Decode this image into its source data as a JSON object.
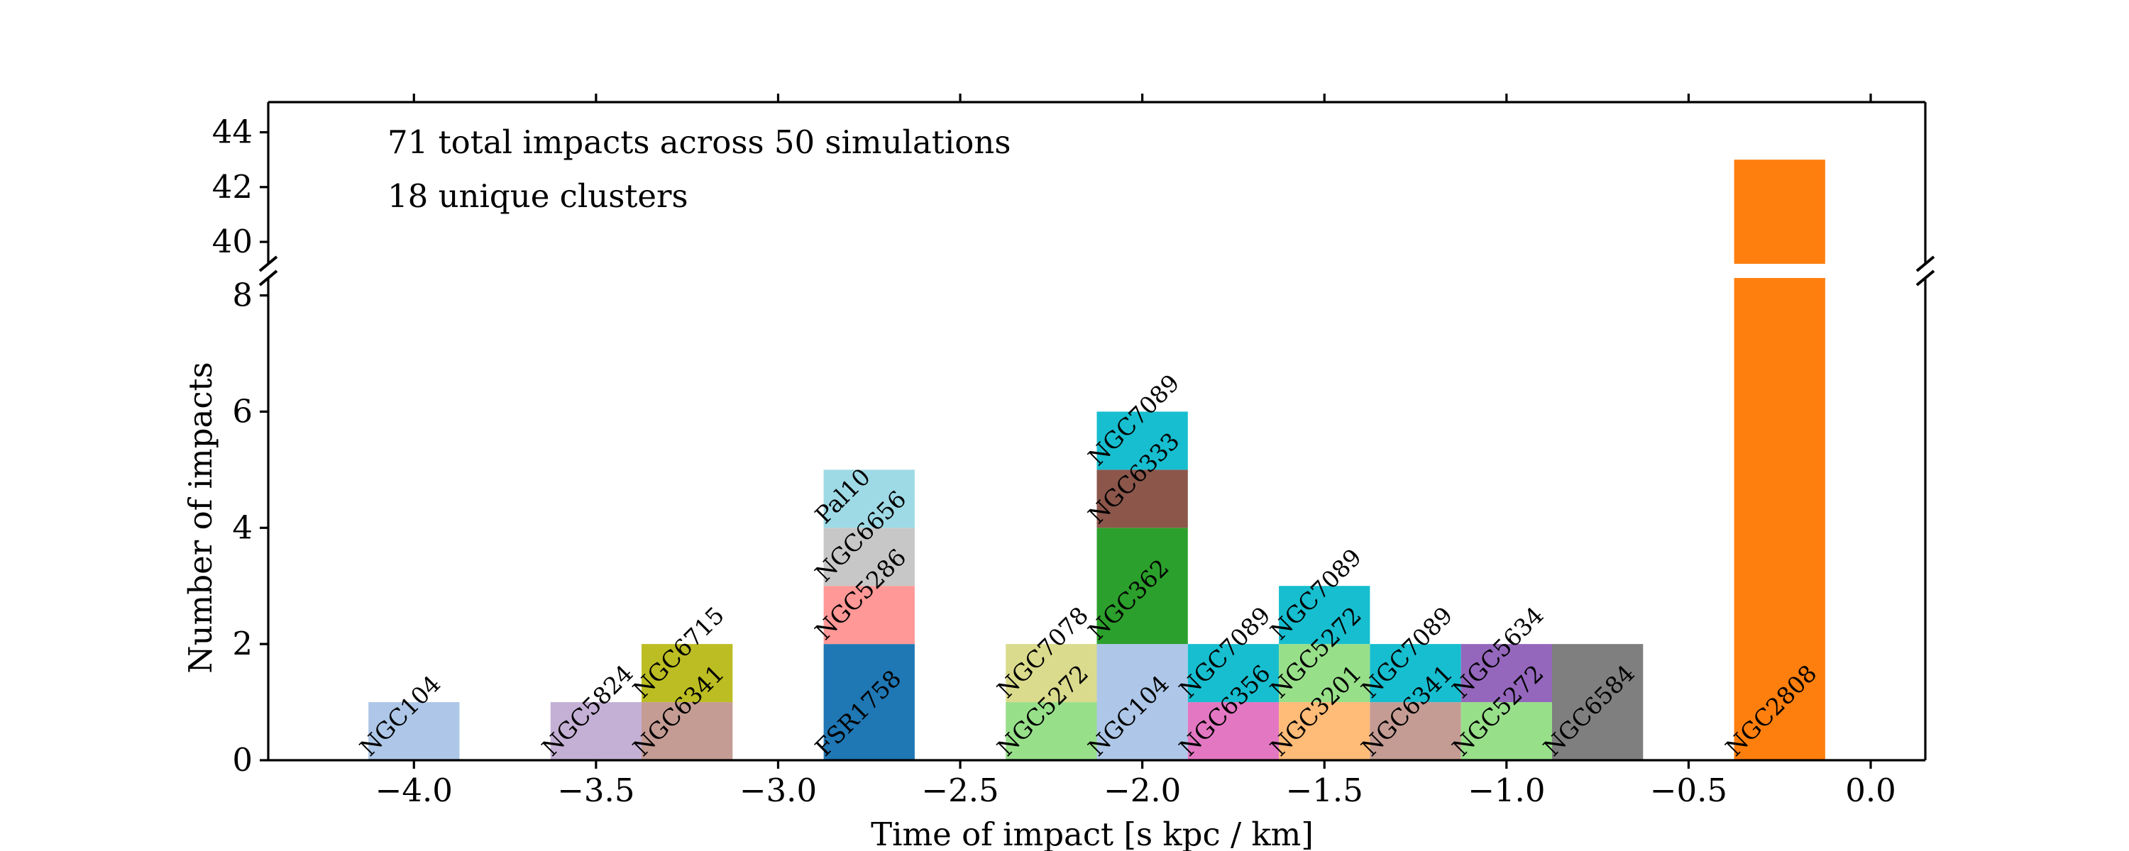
{
  "chart_data": {
    "type": "bar",
    "stacked": true,
    "broken_y_axis": true,
    "xlabel": "Time of impact [s kpc / km]",
    "ylabel": "Number of impacts",
    "xlim": [
      -4.4,
      0.15
    ],
    "ylim_bottom": [
      0,
      8.3
    ],
    "ylim_top": [
      39.2,
      45.1
    ],
    "x_ticks": [
      -4.0,
      -3.5,
      -3.0,
      -2.5,
      -2.0,
      -1.5,
      -1.0,
      -0.5,
      0.0
    ],
    "x_tick_labels": [
      "−4.0",
      "−3.5",
      "−3.0",
      "−2.5",
      "−2.0",
      "−1.5",
      "−1.0",
      "−0.5",
      "0.0"
    ],
    "y_ticks_bottom": [
      0,
      2,
      4,
      6,
      8
    ],
    "y_tick_labels_bottom": [
      "0",
      "2",
      "4",
      "6",
      "8"
    ],
    "y_ticks_top": [
      40,
      42,
      44
    ],
    "y_tick_labels_top": [
      "40",
      "42",
      "44"
    ],
    "bin_width": 0.25,
    "grid": false,
    "annotations": [
      "71 total impacts across 50 simulations",
      "18 unique clusters"
    ],
    "bars": [
      {
        "x0": -4.125,
        "segments": [
          {
            "cluster": "NGC104",
            "count": 1,
            "color": "#aec7e8"
          }
        ]
      },
      {
        "x0": -3.625,
        "segments": [
          {
            "cluster": "NGC5824",
            "count": 1,
            "color": "#c5b0d5"
          }
        ]
      },
      {
        "x0": -3.375,
        "segments": [
          {
            "cluster": "NGC6341",
            "count": 1,
            "color": "#c49c94"
          },
          {
            "cluster": "NGC6715",
            "count": 1,
            "color": "#bcbd22"
          }
        ]
      },
      {
        "x0": -2.875,
        "segments": [
          {
            "cluster": "FSR1758",
            "count": 2,
            "color": "#1f77b4"
          },
          {
            "cluster": "NGC5286",
            "count": 1,
            "color": "#ff9896"
          },
          {
            "cluster": "NGC6656",
            "count": 1,
            "color": "#c7c7c7"
          },
          {
            "cluster": "Pal10",
            "count": 1,
            "color": "#9edae5"
          }
        ]
      },
      {
        "x0": -2.375,
        "segments": [
          {
            "cluster": "NGC5272",
            "count": 1,
            "color": "#98df8a"
          },
          {
            "cluster": "NGC7078",
            "count": 1,
            "color": "#dbdb8d"
          }
        ]
      },
      {
        "x0": -2.125,
        "segments": [
          {
            "cluster": "NGC104",
            "count": 2,
            "color": "#aec7e8"
          },
          {
            "cluster": "NGC362",
            "count": 2,
            "color": "#2ca02c"
          },
          {
            "cluster": "NGC6333",
            "count": 1,
            "color": "#8c564b"
          },
          {
            "cluster": "NGC7089",
            "count": 1,
            "color": "#17becf"
          }
        ]
      },
      {
        "x0": -1.875,
        "segments": [
          {
            "cluster": "NGC6356",
            "count": 1,
            "color": "#e377c2"
          },
          {
            "cluster": "NGC7089",
            "count": 1,
            "color": "#17becf"
          }
        ]
      },
      {
        "x0": -1.625,
        "segments": [
          {
            "cluster": "NGC3201",
            "count": 1,
            "color": "#ffbb78"
          },
          {
            "cluster": "NGC5272",
            "count": 1,
            "color": "#98df8a"
          },
          {
            "cluster": "NGC7089",
            "count": 1,
            "color": "#17becf"
          }
        ]
      },
      {
        "x0": -1.375,
        "segments": [
          {
            "cluster": "NGC6341",
            "count": 1,
            "color": "#c49c94"
          },
          {
            "cluster": "NGC7089",
            "count": 1,
            "color": "#17becf"
          }
        ]
      },
      {
        "x0": -1.125,
        "segments": [
          {
            "cluster": "NGC5272",
            "count": 1,
            "color": "#98df8a"
          },
          {
            "cluster": "NGC5634",
            "count": 1,
            "color": "#9467bd"
          }
        ]
      },
      {
        "x0": -0.875,
        "segments": [
          {
            "cluster": "NGC6584",
            "count": 2,
            "color": "#7f7f7f"
          }
        ]
      },
      {
        "x0": -0.375,
        "segments": [
          {
            "cluster": "NGC2808",
            "count": 43,
            "color": "#ff7f0e"
          }
        ]
      }
    ]
  }
}
